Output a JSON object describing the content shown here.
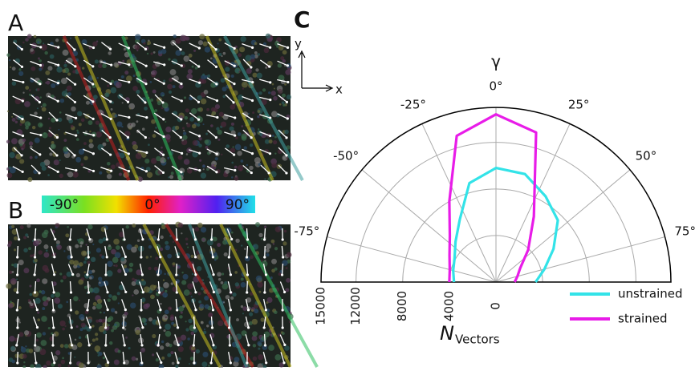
{
  "panels": {
    "a": "A",
    "b": "B",
    "c": "C"
  },
  "colorbar": {
    "labels": [
      "-90°",
      "0°",
      "90°"
    ]
  },
  "orientation": {
    "y": "y",
    "x": "x"
  },
  "chart_data": {
    "type": "polar",
    "title": "γ",
    "x": [
      -90,
      -75,
      -60,
      -45,
      -30,
      -15,
      0,
      15,
      30,
      45,
      60,
      75,
      90
    ],
    "series": [
      {
        "name": "unstrained",
        "color": "#33e3e8",
        "values": [
          3600,
          3800,
          4100,
          4900,
          6200,
          8800,
          9800,
          9600,
          8500,
          7500,
          5700,
          4300,
          3400
        ]
      },
      {
        "name": "strained",
        "color": "#e81ce8",
        "values": [
          4000,
          4100,
          4600,
          5600,
          8000,
          13000,
          14400,
          13300,
          6500,
          3900,
          2400,
          1900,
          1600
        ]
      }
    ],
    "xlim": [
      -90,
      90
    ],
    "xticks": [
      {
        "value": -75,
        "label": "-75°"
      },
      {
        "value": -50,
        "label": "-50°"
      },
      {
        "value": -25,
        "label": "-25°"
      },
      {
        "value": 0,
        "label": "0°"
      },
      {
        "value": 25,
        "label": "25°"
      },
      {
        "value": 50,
        "label": "50°"
      },
      {
        "value": 75,
        "label": "75°"
      }
    ],
    "ylim": [
      0,
      15000
    ],
    "yticks": [
      0,
      4000,
      8000,
      12000,
      15000
    ],
    "ylabel": "N",
    "ylabel_sub": "Vectors",
    "grid": true
  }
}
